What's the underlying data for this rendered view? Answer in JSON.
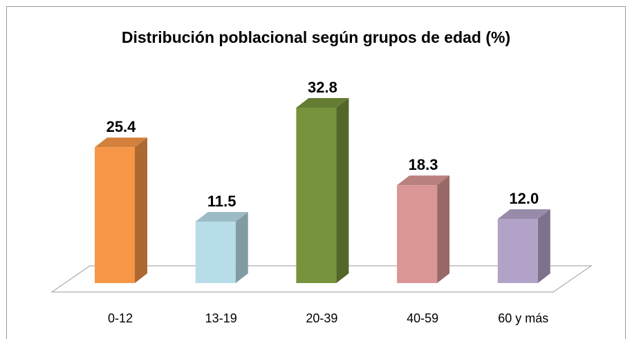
{
  "chart_data": {
    "type": "bar3d",
    "title": "Distribución poblacional según grupos de edad (%)",
    "categories": [
      "0-12",
      "13-19",
      "20-39",
      "40-59",
      "60 y más"
    ],
    "values": [
      25.4,
      11.5,
      32.8,
      18.3,
      12.0
    ],
    "value_labels": [
      "25.4",
      "11.5",
      "32.8",
      "18.3",
      "12.0"
    ],
    "colors": [
      "#f79646",
      "#b7dde8",
      "#77933c",
      "#d99694",
      "#b3a2c7"
    ]
  }
}
